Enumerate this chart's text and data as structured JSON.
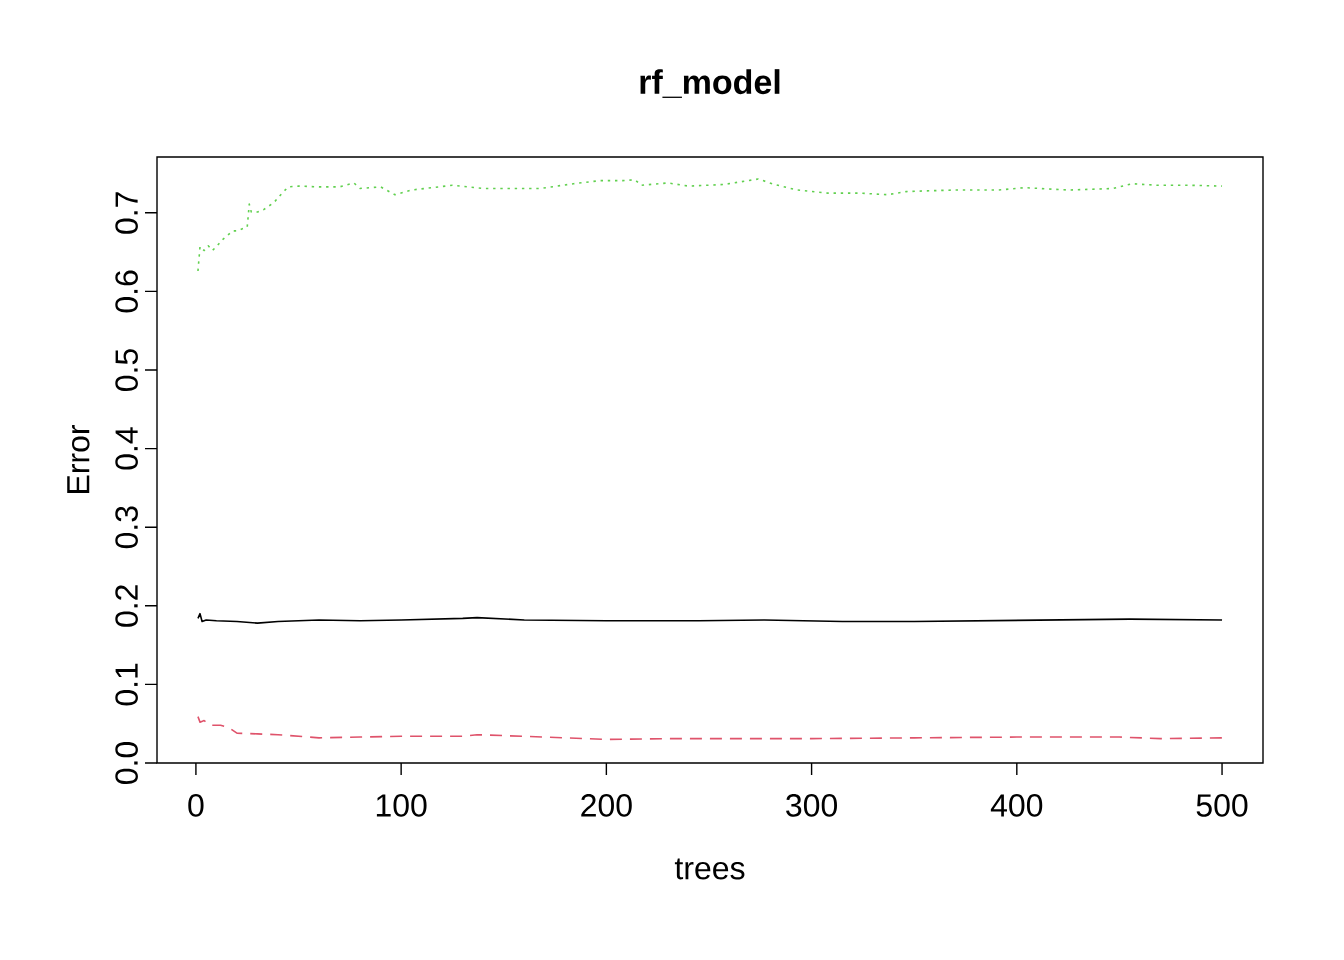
{
  "chart_data": {
    "type": "line",
    "title": "rf_model",
    "xlabel": "trees",
    "ylabel": "Error",
    "xlim": [
      -18.96,
      519.96
    ],
    "ylim": [
      0,
      0.771
    ],
    "xticks": [
      0,
      100,
      200,
      300,
      400,
      500
    ],
    "yticks": [
      {
        "value": 0,
        "label": "0.0"
      },
      0.1,
      0.2,
      0.3,
      0.4,
      0.5,
      0.6,
      0.7
    ],
    "grid": false,
    "marker": "none",
    "series": [
      {
        "color": "#000000",
        "line_style": "solid",
        "x": [
          1,
          2,
          3,
          5,
          10,
          20,
          30,
          40,
          60,
          80,
          100,
          130,
          137,
          160,
          200,
          230,
          245,
          277,
          315,
          350,
          385,
          420,
          455,
          500
        ],
        "values": [
          0.184,
          0.19,
          0.18,
          0.182,
          0.181,
          0.18,
          0.178,
          0.18,
          0.182,
          0.181,
          0.182,
          0.184,
          0.185,
          0.182,
          0.181,
          0.181,
          0.181,
          0.182,
          0.18,
          0.18,
          0.181,
          0.182,
          0.183,
          0.182
        ]
      },
      {
        "color": "#df536b",
        "line_style": "dashed",
        "x": [
          1,
          2,
          4,
          7,
          12,
          16,
          20,
          30,
          40,
          60,
          80,
          100,
          130,
          137,
          170,
          200,
          230,
          245,
          300,
          350,
          400,
          420,
          450,
          470,
          500
        ],
        "values": [
          0.059,
          0.052,
          0.054,
          0.048,
          0.048,
          0.045,
          0.038,
          0.037,
          0.036,
          0.032,
          0.033,
          0.034,
          0.034,
          0.036,
          0.033,
          0.03,
          0.031,
          0.031,
          0.031,
          0.032,
          0.033,
          0.033,
          0.033,
          0.031,
          0.032
        ]
      },
      {
        "color": "#61d04f",
        "line_style": "dotted",
        "x": [
          1,
          2,
          4,
          6,
          8,
          10,
          13,
          18,
          20,
          25,
          26,
          27,
          30,
          33,
          38,
          42,
          45,
          50,
          60,
          70,
          77,
          80,
          90,
          97,
          105,
          115,
          125,
          140,
          168,
          184,
          197,
          208,
          214,
          217,
          230,
          240,
          257,
          274,
          282,
          293,
          308,
          324,
          337,
          346,
          369,
          391,
          404,
          425,
          447,
          456,
          469,
          485,
          500
        ],
        "values": [
          0.626,
          0.657,
          0.652,
          0.658,
          0.652,
          0.657,
          0.666,
          0.677,
          0.677,
          0.682,
          0.711,
          0.701,
          0.701,
          0.704,
          0.713,
          0.725,
          0.733,
          0.734,
          0.733,
          0.733,
          0.738,
          0.731,
          0.733,
          0.723,
          0.729,
          0.732,
          0.735,
          0.731,
          0.731,
          0.737,
          0.741,
          0.741,
          0.742,
          0.735,
          0.738,
          0.734,
          0.736,
          0.743,
          0.736,
          0.729,
          0.725,
          0.725,
          0.723,
          0.727,
          0.729,
          0.729,
          0.732,
          0.729,
          0.731,
          0.737,
          0.735,
          0.735,
          0.734
        ]
      }
    ]
  }
}
